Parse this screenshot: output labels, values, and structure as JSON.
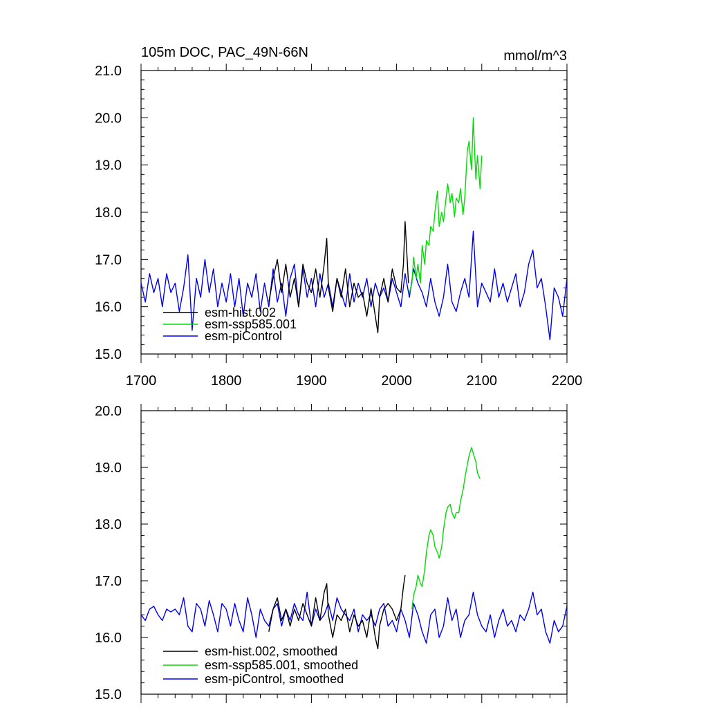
{
  "figure": {
    "title_left": "105m DOC, PAC_49N-66N",
    "title_right": "mmol/m^3"
  },
  "chart_data": [
    {
      "type": "line",
      "panel": "top",
      "title": "105m DOC, PAC_49N-66N",
      "units": "mmol/m^3",
      "xlim": [
        1700,
        2200
      ],
      "ylim": [
        15.0,
        21.0
      ],
      "xticks": [
        1700,
        1800,
        1900,
        2000,
        2100,
        2200
      ],
      "xtick_labels": [
        "1700",
        "1800",
        "1900",
        "2000",
        "2100",
        "2200"
      ],
      "yticks": [
        15.0,
        16.0,
        17.0,
        18.0,
        19.0,
        20.0,
        21.0
      ],
      "ytick_labels": [
        "15.0",
        "16.0",
        "17.0",
        "18.0",
        "19.0",
        "20.0",
        "21.0"
      ],
      "grid": false,
      "legend_position": "bottom-left",
      "series": [
        {
          "name": "esm-hist.002",
          "color": "#000000",
          "x": [
            1850,
            1855,
            1860,
            1865,
            1870,
            1875,
            1880,
            1885,
            1890,
            1895,
            1900,
            1905,
            1910,
            1915,
            1918,
            1920,
            1925,
            1930,
            1935,
            1940,
            1945,
            1950,
            1955,
            1960,
            1965,
            1970,
            1975,
            1978,
            1980,
            1985,
            1990,
            1995,
            2000,
            2005,
            2008,
            2010,
            2014
          ],
          "y": [
            16.1,
            16.6,
            17.0,
            16.3,
            16.9,
            16.2,
            16.6,
            16.0,
            16.9,
            16.5,
            16.3,
            16.8,
            16.2,
            16.9,
            17.45,
            16.4,
            15.9,
            16.6,
            16.2,
            16.8,
            16.0,
            16.5,
            16.2,
            16.3,
            15.8,
            16.4,
            15.8,
            15.45,
            16.2,
            16.6,
            16.1,
            16.8,
            16.4,
            16.3,
            16.9,
            17.8,
            16.5
          ]
        },
        {
          "name": "esm-ssp585.001",
          "color": "#00dd00",
          "x": [
            2015,
            2018,
            2020,
            2023,
            2025,
            2028,
            2030,
            2033,
            2035,
            2038,
            2040,
            2043,
            2045,
            2048,
            2050,
            2053,
            2055,
            2058,
            2060,
            2063,
            2065,
            2068,
            2070,
            2073,
            2075,
            2078,
            2080,
            2083,
            2085,
            2088,
            2090,
            2093,
            2095,
            2098,
            2100
          ],
          "y": [
            16.3,
            16.5,
            17.05,
            16.6,
            16.9,
            16.5,
            17.3,
            16.9,
            17.4,
            17.3,
            17.7,
            17.6,
            18.0,
            18.45,
            17.7,
            18.0,
            17.8,
            18.3,
            18.6,
            18.2,
            18.4,
            17.9,
            18.3,
            18.2,
            18.5,
            17.95,
            18.3,
            19.3,
            19.5,
            18.9,
            20.0,
            18.7,
            19.2,
            18.5,
            19.2
          ]
        },
        {
          "name": "esm-piControl",
          "color": "#0000ee",
          "x": [
            1700,
            1705,
            1710,
            1715,
            1720,
            1725,
            1730,
            1735,
            1740,
            1745,
            1750,
            1755,
            1760,
            1765,
            1770,
            1775,
            1780,
            1785,
            1790,
            1795,
            1800,
            1805,
            1810,
            1815,
            1820,
            1825,
            1830,
            1835,
            1840,
            1845,
            1850,
            1855,
            1860,
            1865,
            1870,
            1875,
            1880,
            1885,
            1890,
            1895,
            1900,
            1905,
            1910,
            1915,
            1920,
            1925,
            1930,
            1935,
            1940,
            1945,
            1950,
            1955,
            1960,
            1965,
            1970,
            1975,
            1980,
            1985,
            1990,
            1995,
            2000,
            2005,
            2010,
            2015,
            2020,
            2025,
            2030,
            2035,
            2040,
            2045,
            2050,
            2055,
            2060,
            2065,
            2070,
            2075,
            2080,
            2085,
            2090,
            2095,
            2100,
            2105,
            2110,
            2115,
            2120,
            2125,
            2130,
            2135,
            2140,
            2145,
            2150,
            2155,
            2160,
            2165,
            2170,
            2175,
            2180,
            2185,
            2190,
            2195,
            2200
          ],
          "y": [
            16.5,
            16.1,
            16.7,
            16.3,
            16.6,
            16.0,
            16.7,
            16.3,
            16.5,
            15.9,
            16.4,
            17.1,
            15.5,
            16.6,
            16.2,
            17.0,
            16.3,
            16.8,
            16.0,
            16.5,
            16.1,
            16.7,
            16.0,
            16.6,
            15.8,
            16.5,
            16.2,
            16.7,
            15.9,
            16.5,
            16.0,
            16.8,
            16.1,
            16.5,
            15.8,
            16.6,
            16.9,
            16.0,
            16.8,
            16.2,
            16.6,
            16.0,
            16.7,
            16.2,
            16.5,
            16.0,
            16.6,
            16.3,
            16.0,
            16.7,
            16.1,
            16.5,
            16.2,
            16.6,
            16.0,
            16.5,
            16.2,
            16.4,
            16.1,
            16.6,
            16.3,
            16.0,
            16.7,
            16.2,
            16.8,
            16.5,
            16.3,
            16.0,
            16.6,
            16.1,
            15.8,
            16.2,
            16.9,
            16.1,
            15.9,
            16.3,
            16.6,
            16.2,
            17.6,
            16.0,
            16.5,
            16.3,
            16.1,
            16.8,
            16.2,
            16.5,
            16.1,
            16.4,
            16.7,
            16.0,
            16.3,
            16.9,
            17.2,
            16.4,
            16.6,
            16.0,
            15.3,
            16.4,
            16.2,
            15.8,
            16.6
          ]
        }
      ]
    },
    {
      "type": "line",
      "panel": "bottom",
      "xlim": [
        1700,
        2200
      ],
      "ylim": [
        15.0,
        20.0
      ],
      "xticks": [
        1700,
        1800,
        1900,
        2000,
        2100,
        2200
      ],
      "yticks": [
        15.0,
        16.0,
        17.0,
        18.0,
        19.0,
        20.0
      ],
      "ytick_labels": [
        "15.0",
        "16.0",
        "17.0",
        "18.0",
        "19.0",
        "20.0"
      ],
      "grid": false,
      "legend_position": "bottom-left",
      "series": [
        {
          "name": "esm-hist.002, smoothed",
          "color": "#000000",
          "x": [
            1850,
            1855,
            1860,
            1865,
            1870,
            1875,
            1880,
            1885,
            1890,
            1895,
            1900,
            1905,
            1910,
            1915,
            1918,
            1920,
            1925,
            1930,
            1935,
            1940,
            1945,
            1950,
            1955,
            1960,
            1965,
            1970,
            1975,
            1978,
            1980,
            1985,
            1990,
            1995,
            2000,
            2005,
            2008,
            2010
          ],
          "y": [
            16.1,
            16.5,
            16.7,
            16.3,
            16.5,
            16.2,
            16.5,
            16.3,
            16.6,
            16.4,
            16.2,
            16.7,
            16.3,
            16.8,
            16.95,
            16.4,
            16.0,
            16.4,
            16.3,
            16.5,
            16.1,
            16.4,
            16.2,
            16.3,
            16.0,
            16.5,
            16.0,
            15.8,
            16.2,
            16.5,
            16.6,
            16.5,
            16.3,
            16.5,
            16.9,
            17.1
          ]
        },
        {
          "name": "esm-ssp585.001, smoothed",
          "color": "#00dd00",
          "x": [
            2018,
            2020,
            2023,
            2025,
            2028,
            2030,
            2033,
            2035,
            2038,
            2040,
            2043,
            2045,
            2048,
            2050,
            2053,
            2055,
            2058,
            2060,
            2063,
            2065,
            2068,
            2070,
            2073,
            2075,
            2078,
            2080,
            2083,
            2085,
            2088,
            2090,
            2093,
            2095,
            2098
          ],
          "y": [
            16.5,
            16.75,
            16.9,
            17.1,
            16.95,
            16.9,
            17.2,
            17.5,
            17.8,
            17.9,
            17.8,
            17.6,
            17.5,
            17.4,
            17.6,
            17.9,
            18.2,
            18.3,
            18.35,
            18.2,
            18.1,
            18.2,
            18.2,
            18.4,
            18.6,
            18.8,
            19.05,
            19.2,
            19.35,
            19.25,
            19.1,
            18.9,
            18.8
          ]
        },
        {
          "name": "esm-piControl, smoothed",
          "color": "#0000ee",
          "x": [
            1700,
            1705,
            1710,
            1715,
            1720,
            1725,
            1730,
            1735,
            1740,
            1745,
            1750,
            1755,
            1760,
            1765,
            1770,
            1775,
            1780,
            1785,
            1790,
            1795,
            1800,
            1805,
            1810,
            1815,
            1820,
            1825,
            1830,
            1835,
            1840,
            1845,
            1850,
            1855,
            1860,
            1865,
            1870,
            1875,
            1880,
            1885,
            1890,
            1895,
            1900,
            1905,
            1910,
            1915,
            1920,
            1925,
            1930,
            1935,
            1940,
            1945,
            1950,
            1955,
            1960,
            1965,
            1970,
            1975,
            1980,
            1985,
            1990,
            1995,
            2000,
            2005,
            2010,
            2015,
            2020,
            2025,
            2030,
            2035,
            2040,
            2045,
            2050,
            2055,
            2060,
            2065,
            2070,
            2075,
            2080,
            2085,
            2090,
            2095,
            2100,
            2105,
            2110,
            2115,
            2120,
            2125,
            2130,
            2135,
            2140,
            2145,
            2150,
            2155,
            2160,
            2165,
            2170,
            2175,
            2180,
            2185,
            2190,
            2195,
            2200
          ],
          "y": [
            16.4,
            16.3,
            16.5,
            16.55,
            16.4,
            16.3,
            16.5,
            16.45,
            16.5,
            16.4,
            16.7,
            16.2,
            16.1,
            16.6,
            16.5,
            16.2,
            16.65,
            16.4,
            16.1,
            16.6,
            16.5,
            16.2,
            16.6,
            16.3,
            16.1,
            16.7,
            16.4,
            16.0,
            16.5,
            16.3,
            16.2,
            16.5,
            16.6,
            16.2,
            16.5,
            16.3,
            16.6,
            16.4,
            16.3,
            16.8,
            16.2,
            16.5,
            16.3,
            16.4,
            16.6,
            16.3,
            16.7,
            16.5,
            16.4,
            16.3,
            16.5,
            16.1,
            16.4,
            16.3,
            16.4,
            16.2,
            16.5,
            16.6,
            16.2,
            16.3,
            16.1,
            16.5,
            16.3,
            16.0,
            16.6,
            16.4,
            16.1,
            15.9,
            16.4,
            16.5,
            16.0,
            16.2,
            16.7,
            16.3,
            16.5,
            16.0,
            16.3,
            16.4,
            16.8,
            16.4,
            16.2,
            16.1,
            16.4,
            16.0,
            16.3,
            16.5,
            16.2,
            16.3,
            16.1,
            16.4,
            16.3,
            16.5,
            16.8,
            16.4,
            16.5,
            16.1,
            15.9,
            16.3,
            16.1,
            16.2,
            16.55
          ]
        }
      ]
    }
  ]
}
